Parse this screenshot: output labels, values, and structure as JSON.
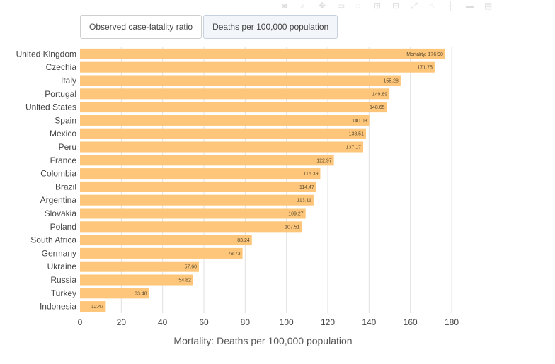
{
  "tabs": [
    {
      "label": "Observed case-fatality ratio",
      "active": false
    },
    {
      "label": "Deaths per 100,000 population",
      "active": true
    }
  ],
  "modebar": [
    "camera-icon",
    "zoom-icon",
    "pan-icon",
    "select-icon",
    "lasso-icon",
    "zoom-in-icon",
    "zoom-out-icon",
    "autoscale-icon",
    "reset-icon",
    "spike-icon",
    "hover-closest-icon",
    "hover-compare-icon"
  ],
  "chart_data": {
    "type": "bar",
    "orientation": "horizontal",
    "categories": [
      "United Kingdom",
      "Czechia",
      "Italy",
      "Portugal",
      "United States",
      "Spain",
      "Mexico",
      "Peru",
      "France",
      "Colombia",
      "Brazil",
      "Argentina",
      "Slovakia",
      "Poland",
      "South Africa",
      "Germany",
      "Ukraine",
      "Russia",
      "Turkey",
      "Indonesia"
    ],
    "values": [
      176.9,
      171.75,
      155.28,
      149.89,
      148.65,
      140.08,
      138.51,
      137.17,
      122.97,
      116.39,
      114.47,
      113.11,
      109.27,
      107.51,
      83.24,
      78.73,
      57.6,
      54.82,
      33.48,
      12.47
    ],
    "value_labels": [
      "Mortality: 176.90",
      "171.75",
      "155.28",
      "149.89",
      "148.65",
      "140.08",
      "138.51",
      "137.17",
      "122.97",
      "116.39",
      "114.47",
      "113.11",
      "109.27",
      "107.51",
      "83.24",
      "78.73",
      "57.60",
      "54.82",
      "33.48",
      "12.47"
    ],
    "xlabel": "Mortality: Deaths per 100,000 population",
    "xlim": [
      0,
      180
    ],
    "xticks": [
      "0",
      "20",
      "40",
      "60",
      "80",
      "100",
      "120",
      "140",
      "160",
      "180"
    ],
    "bar_color": "#fdc67a",
    "grid": true
  }
}
